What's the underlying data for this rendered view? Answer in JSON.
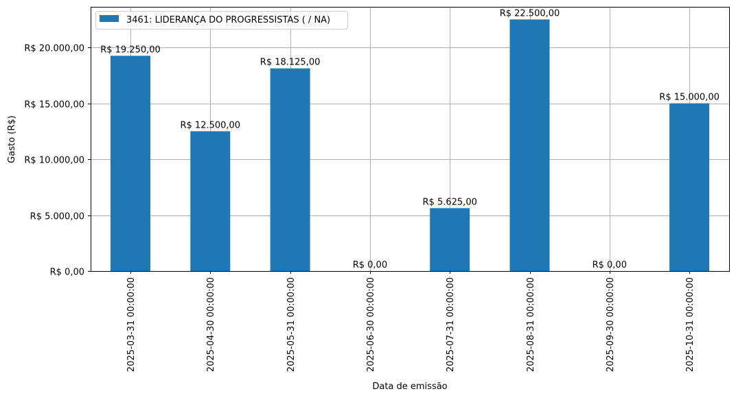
{
  "chart_data": {
    "type": "bar",
    "title": "",
    "xlabel": "Data de emissão",
    "ylabel": "Gasto (R$)",
    "categories": [
      "2025-03-31 00:00:00",
      "2025-04-30 00:00:00",
      "2025-05-31 00:00:00",
      "2025-06-30 00:00:00",
      "2025-07-31 00:00:00",
      "2025-08-31 00:00:00",
      "2025-09-30 00:00:00",
      "2025-10-31 00:00:00"
    ],
    "series": [
      {
        "name": "3461: LIDERANÇA DO PROGRESSISTAS ( / NA)",
        "color": "#1f77b4",
        "values": [
          19250,
          12500,
          18125,
          0,
          5625,
          22500,
          0,
          15000
        ],
        "labels": [
          "R$ 19.250,00",
          "R$ 12.500,00",
          "R$ 18.125,00",
          "R$ 0,00",
          "R$ 5.625,00",
          "R$ 22.500,00",
          "R$ 0,00",
          "R$ 15.000,00"
        ]
      }
    ],
    "ylim": [
      0,
      23625
    ],
    "yticks": [
      0,
      5000,
      10000,
      15000,
      20000
    ],
    "ytick_labels": [
      "R$ 0,00",
      "R$ 5.000,00",
      "R$ 10.000,00",
      "R$ 15.000,00",
      "R$ 20.000,00"
    ],
    "grid": true,
    "legend_position": "upper left",
    "xtick_rotation": 90
  }
}
